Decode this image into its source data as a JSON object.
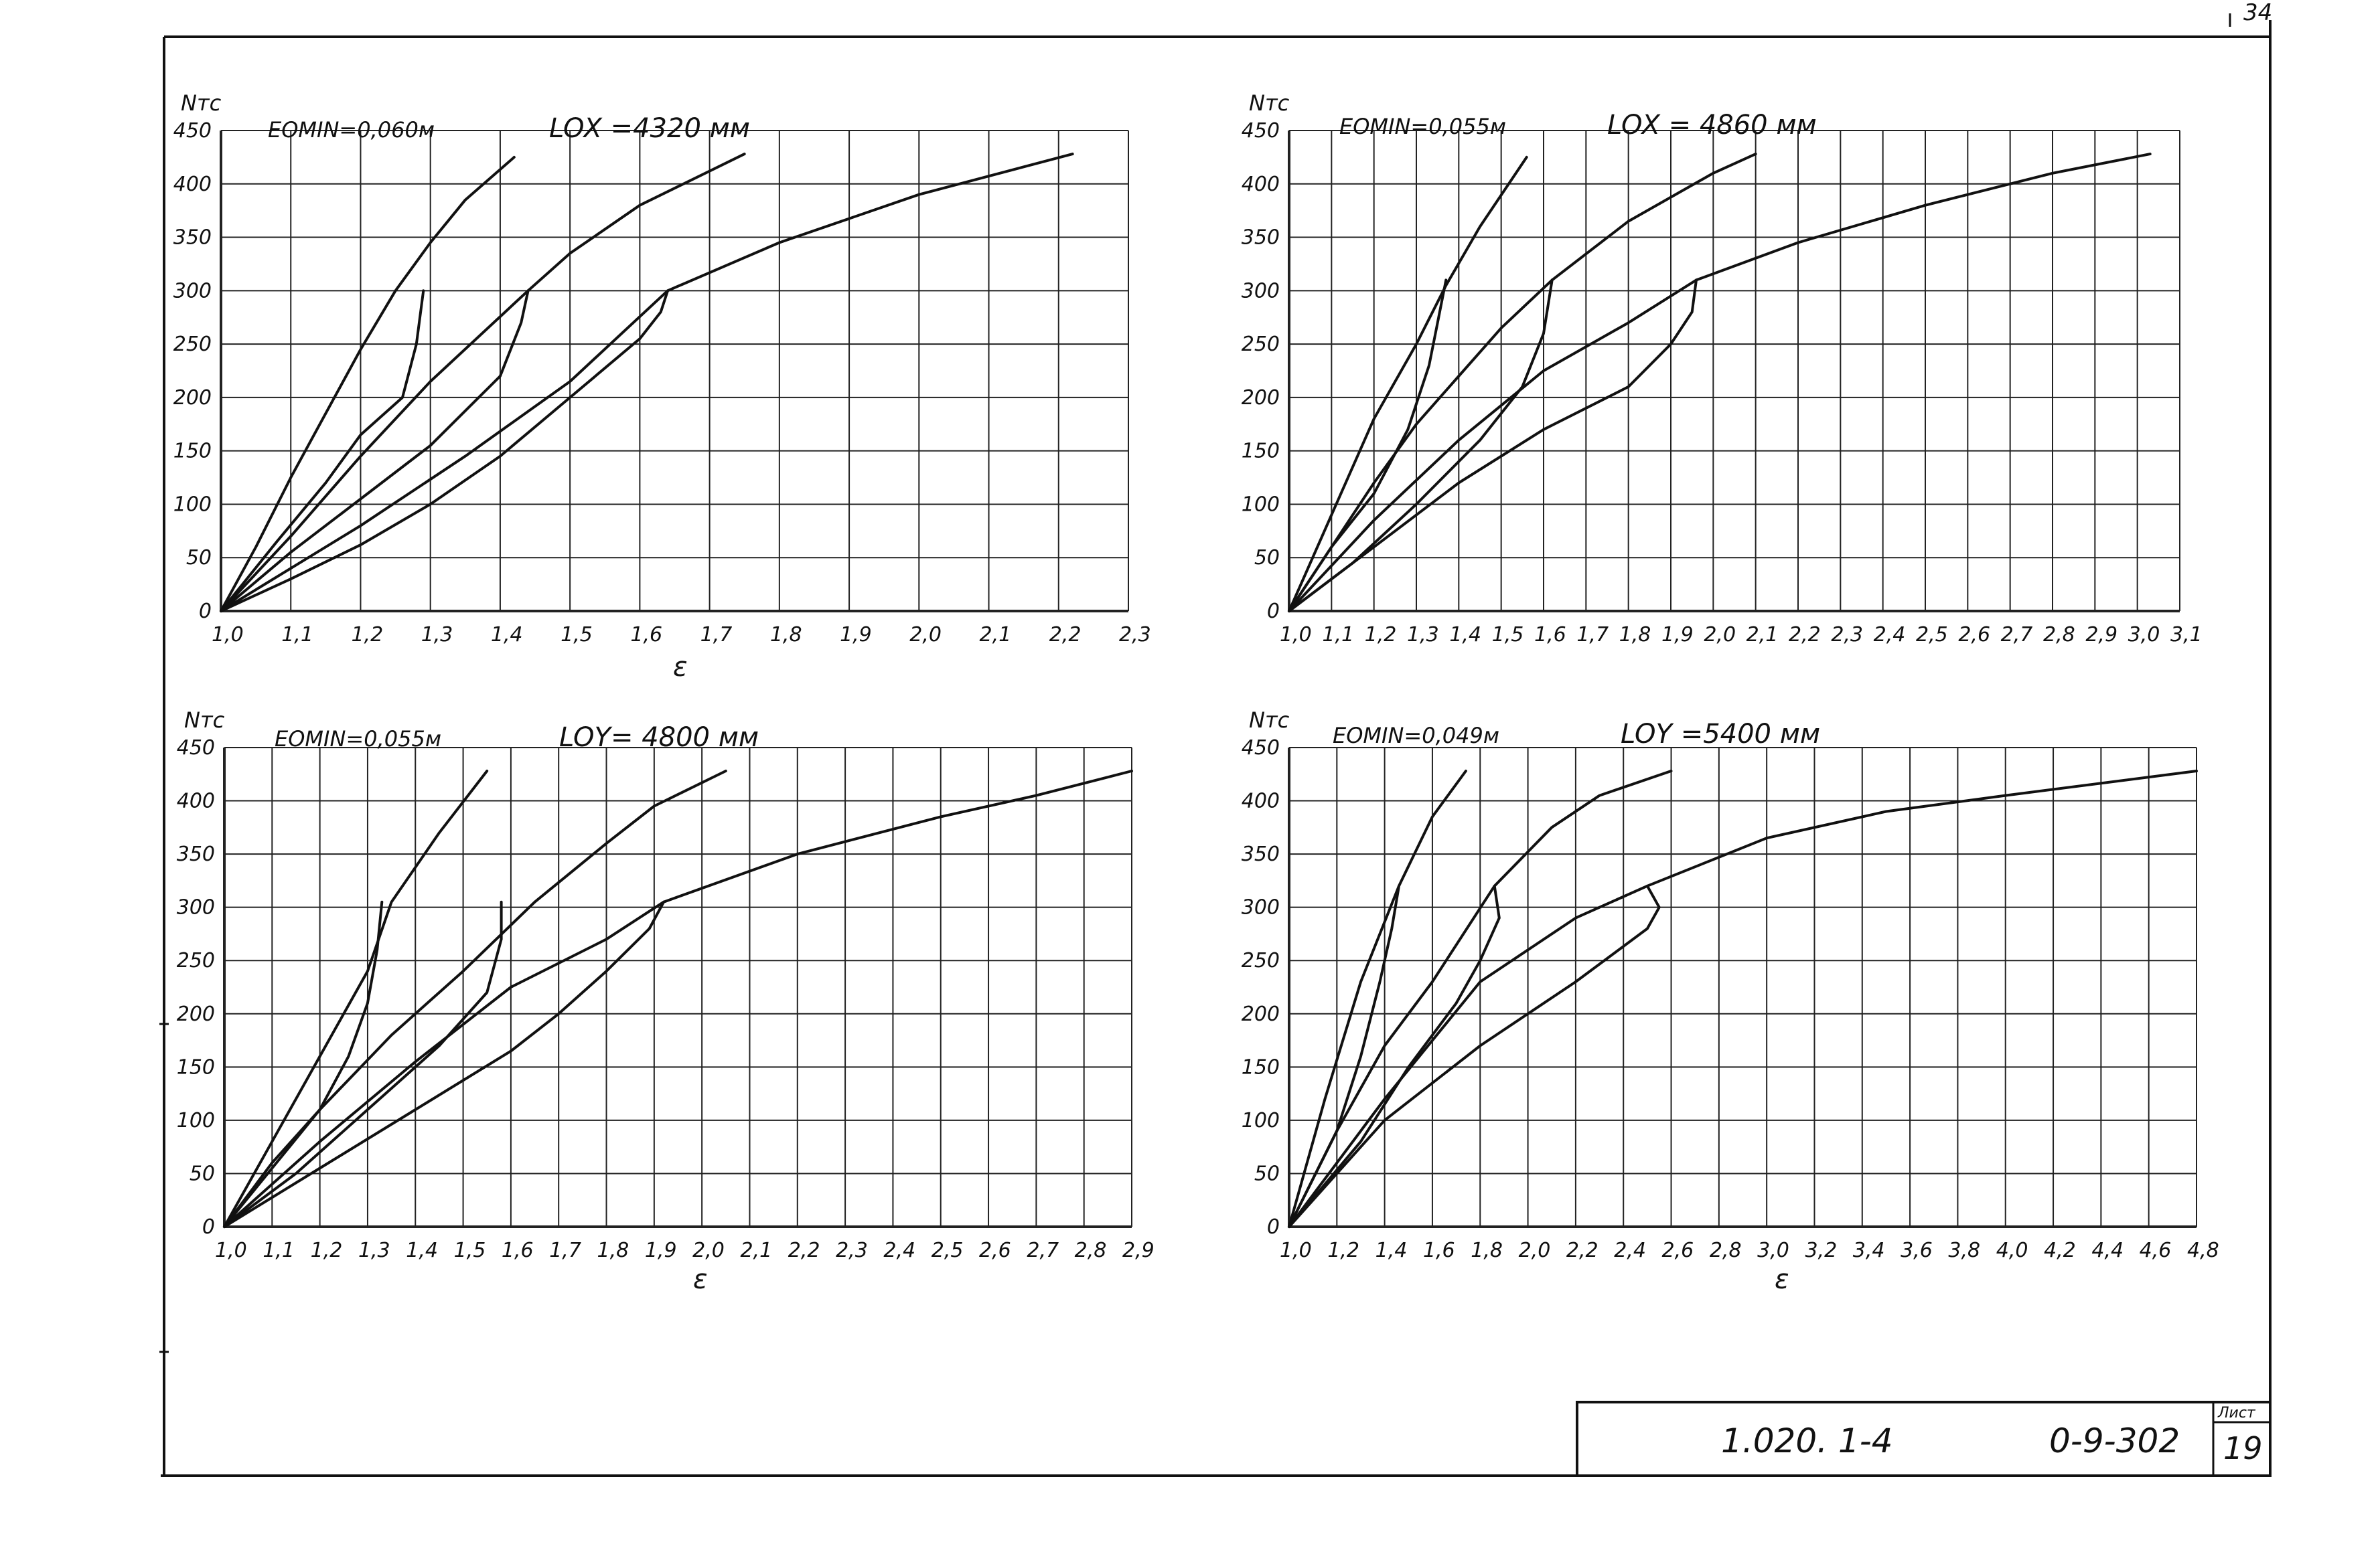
{
  "sheet": {
    "corner_mark": "34",
    "doc_code": "1.020. 1-4",
    "series_code": "0-9-302",
    "list_label": "Лист",
    "list_number": "19"
  },
  "chart_data": [
    {
      "type": "line",
      "ylabel": "Nтс",
      "xlabel": "ε",
      "eomin_label": "EOMIN=0,060м",
      "length_label": "LOX =4320 мм",
      "xlim": [
        1.0,
        2.3
      ],
      "ylim": [
        0,
        450
      ],
      "xticks": [
        1.0,
        1.1,
        1.2,
        1.3,
        1.4,
        1.5,
        1.6,
        1.7,
        1.8,
        1.9,
        2.0,
        2.1,
        2.2,
        2.3
      ],
      "xtick_labels": [
        "1,0",
        "1,1",
        "1,2",
        "1,3",
        "1,4",
        "1,5",
        "1,6",
        "1,7",
        "1,8",
        "1,9",
        "2,0",
        "2,1",
        "2,2",
        "2,3"
      ],
      "yticks": [
        0,
        50,
        100,
        150,
        200,
        250,
        300,
        350,
        400,
        450
      ],
      "grid": true,
      "series": [
        {
          "points": [
            [
              1.0,
              0
            ],
            [
              1.05,
              60
            ],
            [
              1.1,
              125
            ],
            [
              1.15,
              185
            ],
            [
              1.2,
              245
            ],
            [
              1.25,
              300
            ],
            [
              1.3,
              345
            ],
            [
              1.35,
              385
            ],
            [
              1.42,
              425
            ]
          ]
        },
        {
          "points": [
            [
              1.0,
              0
            ],
            [
              1.08,
              65
            ],
            [
              1.15,
              120
            ],
            [
              1.2,
              165
            ],
            [
              1.26,
              200
            ],
            [
              1.28,
              250
            ],
            [
              1.29,
              300
            ]
          ]
        },
        {
          "points": [
            [
              1.0,
              0
            ],
            [
              1.1,
              70
            ],
            [
              1.2,
              145
            ],
            [
              1.3,
              215
            ],
            [
              1.44,
              300
            ],
            [
              1.5,
              335
            ],
            [
              1.6,
              380
            ],
            [
              1.75,
              428
            ]
          ]
        },
        {
          "points": [
            [
              1.0,
              0
            ],
            [
              1.1,
              55
            ],
            [
              1.2,
              105
            ],
            [
              1.3,
              155
            ],
            [
              1.4,
              220
            ],
            [
              1.43,
              270
            ],
            [
              1.44,
              300
            ]
          ]
        },
        {
          "points": [
            [
              1.0,
              0
            ],
            [
              1.1,
              40
            ],
            [
              1.2,
              80
            ],
            [
              1.35,
              145
            ],
            [
              1.5,
              215
            ],
            [
              1.64,
              300
            ],
            [
              1.8,
              345
            ],
            [
              2.0,
              390
            ],
            [
              2.22,
              428
            ]
          ]
        },
        {
          "points": [
            [
              1.0,
              0
            ],
            [
              1.1,
              30
            ],
            [
              1.2,
              62
            ],
            [
              1.3,
              100
            ],
            [
              1.4,
              145
            ],
            [
              1.5,
              200
            ],
            [
              1.6,
              255
            ],
            [
              1.63,
              280
            ],
            [
              1.64,
              300
            ]
          ]
        }
      ]
    },
    {
      "type": "line",
      "ylabel": "Nтс",
      "xlabel": "",
      "eomin_label": "EOMIN=0,055м",
      "length_label": "LOX = 4860 мм",
      "xlim": [
        1.0,
        3.1
      ],
      "ylim": [
        0,
        450
      ],
      "xticks": [
        1.0,
        1.1,
        1.2,
        1.3,
        1.4,
        1.5,
        1.6,
        1.7,
        1.8,
        1.9,
        2.0,
        2.1,
        2.2,
        2.3,
        2.4,
        2.5,
        2.6,
        2.7,
        2.8,
        2.9,
        3.0,
        3.1
      ],
      "xtick_labels": [
        "1,0",
        "1,1",
        "1,2",
        "1,3",
        "1,4",
        "1,5",
        "1,6",
        "1,7",
        "1,8",
        "1,9",
        "2,0",
        "2,1",
        "2,2",
        "2,3",
        "2,4",
        "2,5",
        "2,6",
        "2,7",
        "2,8",
        "2,9",
        "3,0",
        "3,1"
      ],
      "yticks": [
        0,
        50,
        100,
        150,
        200,
        250,
        300,
        350,
        400,
        450
      ],
      "grid": true,
      "series": [
        {
          "points": [
            [
              1.0,
              0
            ],
            [
              1.1,
              90
            ],
            [
              1.2,
              180
            ],
            [
              1.3,
              250
            ],
            [
              1.37,
              305
            ],
            [
              1.45,
              360
            ],
            [
              1.56,
              425
            ]
          ]
        },
        {
          "points": [
            [
              1.0,
              0
            ],
            [
              1.1,
              60
            ],
            [
              1.2,
              110
            ],
            [
              1.28,
              170
            ],
            [
              1.33,
              230
            ],
            [
              1.35,
              270
            ],
            [
              1.37,
              310
            ]
          ]
        },
        {
          "points": [
            [
              1.0,
              0
            ],
            [
              1.1,
              60
            ],
            [
              1.2,
              120
            ],
            [
              1.3,
              175
            ],
            [
              1.4,
              220
            ],
            [
              1.5,
              265
            ],
            [
              1.62,
              310
            ],
            [
              1.8,
              365
            ],
            [
              2.0,
              410
            ],
            [
              2.1,
              428
            ]
          ]
        },
        {
          "points": [
            [
              1.0,
              0
            ],
            [
              1.15,
              45
            ],
            [
              1.3,
              100
            ],
            [
              1.45,
              160
            ],
            [
              1.55,
              210
            ],
            [
              1.6,
              260
            ],
            [
              1.62,
              310
            ]
          ]
        },
        {
          "points": [
            [
              1.0,
              0
            ],
            [
              1.2,
              85
            ],
            [
              1.4,
              160
            ],
            [
              1.6,
              225
            ],
            [
              1.8,
              270
            ],
            [
              1.96,
              310
            ],
            [
              2.2,
              345
            ],
            [
              2.5,
              380
            ],
            [
              2.8,
              410
            ],
            [
              3.03,
              428
            ]
          ]
        },
        {
          "points": [
            [
              1.0,
              0
            ],
            [
              1.2,
              60
            ],
            [
              1.4,
              120
            ],
            [
              1.6,
              170
            ],
            [
              1.8,
              210
            ],
            [
              1.9,
              250
            ],
            [
              1.95,
              280
            ],
            [
              1.96,
              310
            ]
          ]
        }
      ]
    },
    {
      "type": "line",
      "ylabel": "Nтс",
      "xlabel": "ε",
      "eomin_label": "EOMIN=0,055м",
      "length_label": "LOY= 4800 мм",
      "xlim": [
        1.0,
        2.9
      ],
      "ylim": [
        0,
        450
      ],
      "xticks": [
        1.0,
        1.1,
        1.2,
        1.3,
        1.4,
        1.5,
        1.6,
        1.7,
        1.8,
        1.9,
        2.0,
        2.1,
        2.2,
        2.3,
        2.4,
        2.5,
        2.6,
        2.7,
        2.8,
        2.9
      ],
      "xtick_labels": [
        "1,0",
        "1,1",
        "1,2",
        "1,3",
        "1,4",
        "1,5",
        "1,6",
        "1,7",
        "1,8",
        "1,9",
        "2,0",
        "2,1",
        "2,2",
        "2,3",
        "2,4",
        "2,5",
        "2,6",
        "2,7",
        "2,8",
        "2,9"
      ],
      "yticks": [
        0,
        50,
        100,
        150,
        200,
        250,
        300,
        350,
        400,
        450
      ],
      "grid": true,
      "series": [
        {
          "points": [
            [
              1.0,
              0
            ],
            [
              1.1,
              80
            ],
            [
              1.2,
              160
            ],
            [
              1.3,
              240
            ],
            [
              1.35,
              305
            ],
            [
              1.45,
              370
            ],
            [
              1.55,
              428
            ]
          ]
        },
        {
          "points": [
            [
              1.0,
              0
            ],
            [
              1.1,
              55
            ],
            [
              1.2,
              110
            ],
            [
              1.26,
              160
            ],
            [
              1.3,
              210
            ],
            [
              1.32,
              260
            ],
            [
              1.33,
              305
            ]
          ]
        },
        {
          "points": [
            [
              1.0,
              0
            ],
            [
              1.1,
              60
            ],
            [
              1.2,
              110
            ],
            [
              1.35,
              180
            ],
            [
              1.5,
              240
            ],
            [
              1.65,
              305
            ],
            [
              1.8,
              360
            ],
            [
              1.9,
              395
            ],
            [
              2.05,
              428
            ]
          ]
        },
        {
          "points": [
            [
              1.0,
              0
            ],
            [
              1.15,
              50
            ],
            [
              1.3,
              110
            ],
            [
              1.45,
              170
            ],
            [
              1.55,
              220
            ],
            [
              1.58,
              270
            ],
            [
              1.58,
              305
            ]
          ]
        },
        {
          "points": [
            [
              1.0,
              0
            ],
            [
              1.2,
              80
            ],
            [
              1.4,
              155
            ],
            [
              1.6,
              225
            ],
            [
              1.8,
              270
            ],
            [
              1.92,
              305
            ],
            [
              2.2,
              350
            ],
            [
              2.5,
              385
            ],
            [
              2.7,
              405
            ],
            [
              2.9,
              428
            ]
          ]
        },
        {
          "points": [
            [
              1.0,
              0
            ],
            [
              1.2,
              55
            ],
            [
              1.4,
              110
            ],
            [
              1.6,
              165
            ],
            [
              1.7,
              200
            ],
            [
              1.8,
              240
            ],
            [
              1.89,
              280
            ],
            [
              1.92,
              305
            ]
          ]
        }
      ]
    },
    {
      "type": "line",
      "ylabel": "Nтс",
      "xlabel": "ε",
      "eomin_label": "EOMIN=0,049м",
      "length_label": "LOY =5400 мм",
      "xlim": [
        1.0,
        4.8
      ],
      "ylim": [
        0,
        450
      ],
      "xticks": [
        1.0,
        1.2,
        1.4,
        1.6,
        1.8,
        2.0,
        2.2,
        2.4,
        2.6,
        2.8,
        3.0,
        3.2,
        3.4,
        3.6,
        3.8,
        4.0,
        4.2,
        4.4,
        4.6,
        4.8
      ],
      "xtick_labels": [
        "1,0",
        "1,2",
        "1,4",
        "1,6",
        "1,8",
        "2,0",
        "2,2",
        "2,4",
        "2,6",
        "2,8",
        "3,0",
        "3,2",
        "3,4",
        "3,6",
        "3,8",
        "4,0",
        "4,2",
        "4,4",
        "4,6",
        "4,8"
      ],
      "yticks": [
        0,
        50,
        100,
        150,
        200,
        250,
        300,
        350,
        400,
        450
      ],
      "grid": true,
      "series": [
        {
          "points": [
            [
              1.0,
              0
            ],
            [
              1.15,
              120
            ],
            [
              1.3,
              230
            ],
            [
              1.46,
              320
            ],
            [
              1.6,
              385
            ],
            [
              1.74,
              428
            ]
          ]
        },
        {
          "points": [
            [
              1.0,
              0
            ],
            [
              1.2,
              90
            ],
            [
              1.3,
              160
            ],
            [
              1.38,
              230
            ],
            [
              1.43,
              280
            ],
            [
              1.46,
              320
            ]
          ]
        },
        {
          "points": [
            [
              1.0,
              0
            ],
            [
              1.2,
              90
            ],
            [
              1.4,
              170
            ],
            [
              1.6,
              230
            ],
            [
              1.86,
              320
            ],
            [
              2.1,
              375
            ],
            [
              2.3,
              405
            ],
            [
              2.6,
              428
            ]
          ]
        },
        {
          "points": [
            [
              1.0,
              0
            ],
            [
              1.3,
              80
            ],
            [
              1.5,
              150
            ],
            [
              1.7,
              210
            ],
            [
              1.8,
              250
            ],
            [
              1.88,
              290
            ],
            [
              1.86,
              320
            ]
          ]
        },
        {
          "points": [
            [
              1.0,
              0
            ],
            [
              1.4,
              120
            ],
            [
              1.8,
              230
            ],
            [
              2.2,
              290
            ],
            [
              2.5,
              320
            ],
            [
              3.0,
              365
            ],
            [
              3.5,
              390
            ],
            [
              4.0,
              405
            ],
            [
              4.8,
              428
            ]
          ]
        },
        {
          "points": [
            [
              1.0,
              0
            ],
            [
              1.4,
              100
            ],
            [
              1.8,
              170
            ],
            [
              2.2,
              230
            ],
            [
              2.5,
              280
            ],
            [
              2.55,
              300
            ],
            [
              2.5,
              320
            ]
          ]
        }
      ]
    }
  ]
}
